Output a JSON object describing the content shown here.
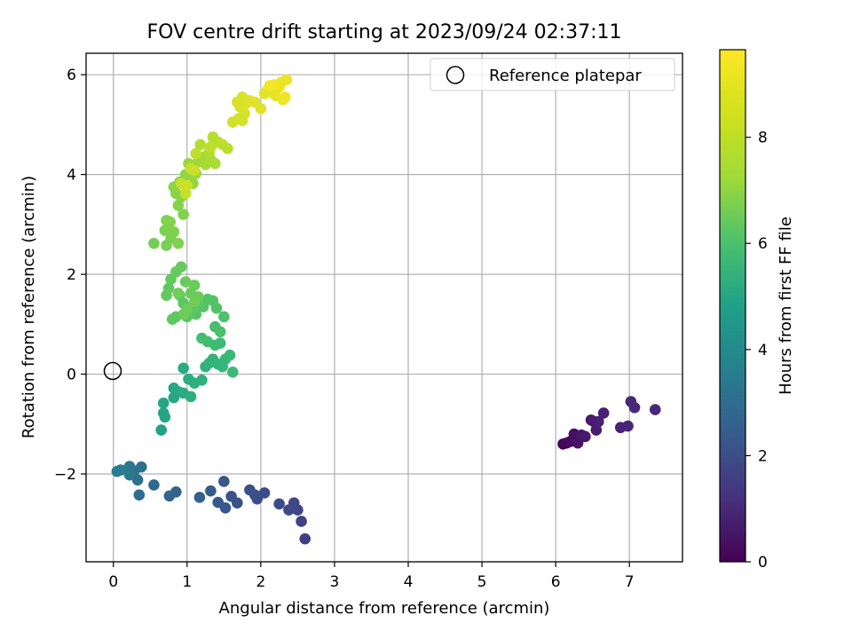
{
  "chart_data": {
    "type": "scatter",
    "title": "FOV centre drift starting at 2023/09/24 02:37:11",
    "xlabel": "Angular distance from reference (arcmin)",
    "ylabel": "Rotation from reference (arcmin)",
    "xlim": [
      -0.37,
      7.72
    ],
    "ylim": [
      -3.76,
      6.43
    ],
    "xticks": [
      "0",
      "1",
      "2",
      "3",
      "4",
      "5",
      "6",
      "7"
    ],
    "yticks": [
      "−2",
      "0",
      "2",
      "4",
      "6"
    ],
    "grid": true,
    "legend": {
      "position": "top-right",
      "entries": [
        "Reference platepar"
      ]
    },
    "reference_point": {
      "x": 0,
      "y": 0,
      "label": "Reference platepar"
    },
    "colorbar": {
      "label": "Hours from first FF file",
      "colormap": "viridis",
      "range": [
        0,
        9.65
      ],
      "ticks": [
        "0",
        "2",
        "4",
        "6",
        "8"
      ]
    },
    "points": [
      [
        6.1,
        -1.4,
        0.1
      ],
      [
        6.15,
        -1.38,
        0.2
      ],
      [
        6.2,
        -1.35,
        0.3
      ],
      [
        6.25,
        -1.2,
        0.4
      ],
      [
        6.28,
        -1.3,
        0.45
      ],
      [
        6.3,
        -1.38,
        0.5
      ],
      [
        6.35,
        -1.22,
        0.6
      ],
      [
        6.4,
        -1.25,
        0.65
      ],
      [
        6.48,
        -0.92,
        0.7
      ],
      [
        6.52,
        -0.95,
        0.75
      ],
      [
        6.55,
        -1.12,
        0.8
      ],
      [
        6.58,
        -0.95,
        0.85
      ],
      [
        6.65,
        -0.78,
        0.9
      ],
      [
        6.88,
        -1.07,
        0.95
      ],
      [
        6.98,
        -1.04,
        1.0
      ],
      [
        7.02,
        -0.55,
        1.05
      ],
      [
        7.07,
        -0.67,
        1.1
      ],
      [
        7.35,
        -0.71,
        1.15
      ],
      [
        2.6,
        -3.3,
        1.8
      ],
      [
        2.55,
        -2.95,
        1.9
      ],
      [
        2.5,
        -2.72,
        2.0
      ],
      [
        2.45,
        -2.58,
        2.05
      ],
      [
        2.38,
        -2.72,
        2.1
      ],
      [
        2.25,
        -2.6,
        2.15
      ],
      [
        2.05,
        -2.38,
        2.2
      ],
      [
        1.95,
        -2.5,
        2.25
      ],
      [
        1.92,
        -2.42,
        2.3
      ],
      [
        1.85,
        -2.32,
        2.35
      ],
      [
        1.68,
        -2.58,
        2.4
      ],
      [
        1.6,
        -2.45,
        2.5
      ],
      [
        1.52,
        -2.68,
        2.55
      ],
      [
        1.5,
        -2.15,
        2.6
      ],
      [
        1.42,
        -2.57,
        2.7
      ],
      [
        1.32,
        -2.34,
        2.8
      ],
      [
        1.17,
        -2.47,
        2.9
      ],
      [
        0.85,
        -2.36,
        3.0
      ],
      [
        0.76,
        -2.44,
        3.1
      ],
      [
        0.55,
        -2.22,
        3.2
      ],
      [
        0.35,
        -2.42,
        3.4
      ],
      [
        0.33,
        -2.12,
        3.5
      ],
      [
        0.38,
        -1.86,
        3.6
      ],
      [
        0.28,
        -1.94,
        3.7
      ],
      [
        0.22,
        -1.85,
        3.8
      ],
      [
        0.22,
        -2.02,
        3.9
      ],
      [
        0.1,
        -1.92,
        4.0
      ],
      [
        0.05,
        -1.95,
        4.1
      ],
      [
        0.65,
        -1.12,
        5.5
      ],
      [
        0.68,
        -0.78,
        5.6
      ],
      [
        0.7,
        -0.86,
        5.65
      ],
      [
        0.68,
        -0.58,
        5.7
      ],
      [
        0.82,
        -0.47,
        5.75
      ],
      [
        0.82,
        -0.28,
        5.8
      ],
      [
        0.88,
        -0.35,
        5.85
      ],
      [
        0.95,
        -0.38,
        5.9
      ],
      [
        0.95,
        0.12,
        5.95
      ],
      [
        1.02,
        -0.1,
        6.0
      ],
      [
        1.05,
        -0.45,
        6.05
      ],
      [
        1.1,
        -0.18,
        6.1
      ],
      [
        1.2,
        -0.12,
        6.15
      ],
      [
        1.25,
        0.15,
        6.2
      ],
      [
        1.3,
        0.22,
        6.25
      ],
      [
        1.35,
        0.3,
        6.3
      ],
      [
        1.42,
        0.2,
        6.35
      ],
      [
        1.48,
        0.15,
        6.4
      ],
      [
        1.52,
        0.3,
        6.45
      ],
      [
        1.58,
        0.38,
        6.5
      ],
      [
        1.62,
        0.04,
        6.55
      ],
      [
        1.45,
        0.62,
        6.6
      ],
      [
        1.38,
        0.58,
        6.65
      ],
      [
        1.28,
        0.65,
        6.7
      ],
      [
        1.2,
        0.72,
        6.75
      ],
      [
        1.38,
        0.95,
        6.8
      ],
      [
        1.45,
        0.85,
        6.85
      ],
      [
        1.5,
        1.15,
        6.9
      ],
      [
        1.4,
        1.32,
        6.95
      ],
      [
        1.35,
        1.47,
        7.0
      ],
      [
        1.28,
        1.5,
        7.02
      ],
      [
        1.22,
        1.35,
        7.05
      ],
      [
        1.15,
        1.42,
        7.08
      ],
      [
        1.12,
        1.2,
        7.1
      ],
      [
        1.05,
        1.32,
        7.12
      ],
      [
        1.0,
        1.15,
        7.15
      ],
      [
        0.95,
        1.42,
        7.17
      ],
      [
        0.9,
        1.58,
        7.2
      ],
      [
        0.85,
        1.15,
        7.22
      ],
      [
        0.8,
        1.1,
        7.25
      ],
      [
        0.75,
        1.72,
        7.27
      ],
      [
        0.72,
        1.58,
        7.3
      ],
      [
        0.78,
        1.9,
        7.32
      ],
      [
        0.85,
        2.05,
        7.35
      ],
      [
        0.92,
        2.15,
        7.37
      ],
      [
        0.98,
        1.85,
        7.4
      ],
      [
        1.05,
        1.62,
        7.42
      ],
      [
        1.1,
        1.78,
        7.45
      ],
      [
        1.15,
        1.55,
        7.47
      ],
      [
        1.0,
        1.3,
        7.5
      ],
      [
        0.95,
        1.2,
        7.52
      ],
      [
        1.1,
        1.45,
        7.55
      ],
      [
        0.88,
        1.62,
        7.57
      ],
      [
        0.55,
        2.62,
        7.6
      ],
      [
        0.72,
        2.58,
        7.65
      ],
      [
        0.78,
        2.72,
        7.7
      ],
      [
        0.7,
        2.88,
        7.72
      ],
      [
        0.82,
        2.85,
        7.75
      ],
      [
        0.88,
        2.62,
        7.77
      ],
      [
        0.72,
        3.08,
        7.8
      ],
      [
        0.77,
        3.05,
        7.82
      ],
      [
        0.95,
        3.2,
        7.85
      ],
      [
        0.88,
        3.38,
        7.87
      ],
      [
        0.92,
        3.55,
        7.9
      ],
      [
        0.85,
        3.62,
        7.92
      ],
      [
        0.82,
        3.75,
        7.95
      ],
      [
        0.9,
        3.85,
        7.97
      ],
      [
        0.98,
        4.0,
        8.0
      ],
      [
        1.02,
        3.92,
        8.05
      ],
      [
        1.08,
        3.82,
        8.1
      ],
      [
        1.12,
        4.02,
        8.15
      ],
      [
        1.02,
        4.22,
        8.2
      ],
      [
        1.15,
        4.25,
        8.25
      ],
      [
        1.2,
        4.35,
        8.3
      ],
      [
        1.25,
        4.2,
        8.35
      ],
      [
        1.32,
        4.3,
        8.4
      ],
      [
        1.38,
        4.22,
        8.45
      ],
      [
        1.3,
        4.45,
        8.5
      ],
      [
        1.18,
        4.6,
        8.55
      ],
      [
        1.35,
        4.75,
        8.6
      ],
      [
        1.42,
        4.65,
        8.62
      ],
      [
        1.55,
        4.52,
        8.65
      ],
      [
        1.48,
        4.6,
        8.7
      ],
      [
        1.32,
        4.55,
        8.72
      ],
      [
        1.12,
        4.42,
        8.75
      ],
      [
        1.05,
        4.12,
        8.8
      ],
      [
        0.98,
        3.62,
        8.82
      ],
      [
        0.92,
        3.82,
        8.85
      ],
      [
        1.1,
        4.08,
        8.88
      ],
      [
        1.0,
        3.78,
        8.9
      ],
      [
        1.62,
        5.05,
        8.95
      ],
      [
        1.7,
        5.12,
        9.0
      ],
      [
        1.75,
        5.08,
        9.02
      ],
      [
        1.78,
        5.22,
        9.05
      ],
      [
        1.72,
        5.35,
        9.08
      ],
      [
        1.68,
        5.45,
        9.1
      ],
      [
        1.75,
        5.55,
        9.12
      ],
      [
        1.8,
        5.42,
        9.15
      ],
      [
        1.85,
        5.48,
        9.18
      ],
      [
        1.92,
        5.45,
        9.2
      ],
      [
        2.0,
        5.32,
        9.22
      ],
      [
        2.05,
        5.62,
        9.25
      ],
      [
        2.1,
        5.72,
        9.28
      ],
      [
        2.15,
        5.65,
        9.3
      ],
      [
        2.2,
        5.58,
        9.33
      ],
      [
        2.25,
        5.75,
        9.35
      ],
      [
        2.28,
        5.85,
        9.38
      ],
      [
        2.35,
        5.9,
        9.4
      ],
      [
        2.3,
        5.5,
        9.42
      ],
      [
        2.33,
        5.55,
        9.45
      ],
      [
        2.12,
        5.78,
        9.48
      ],
      [
        2.18,
        5.8,
        9.5
      ]
    ]
  }
}
